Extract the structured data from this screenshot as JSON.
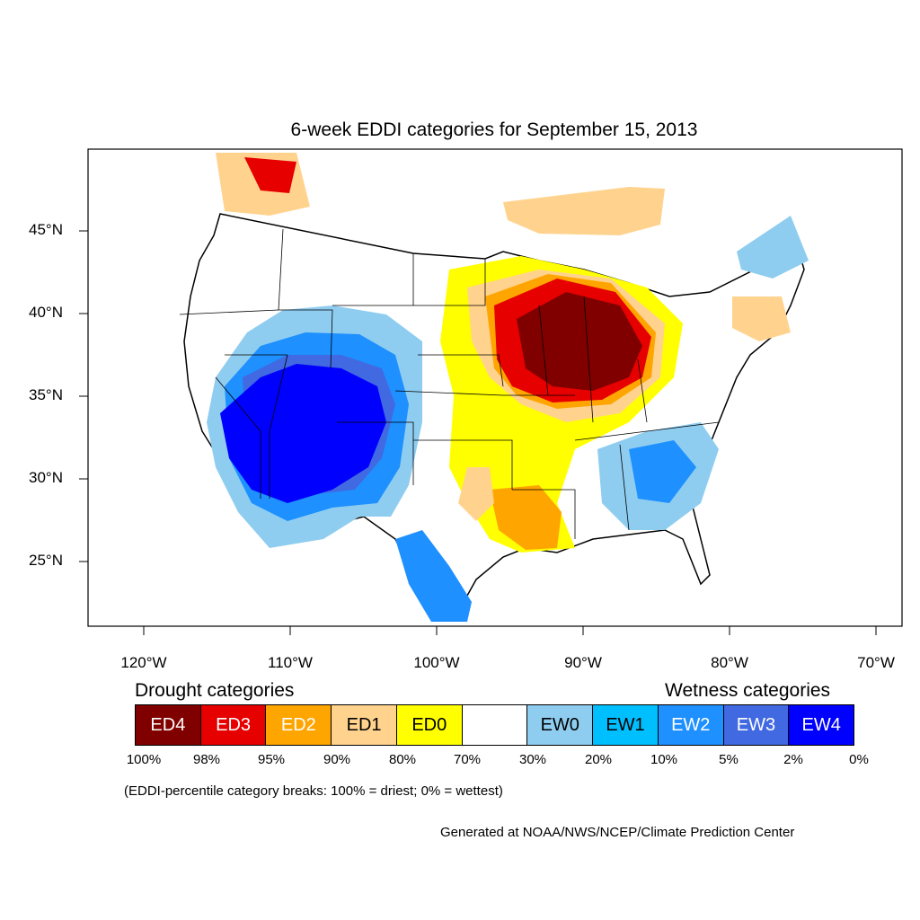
{
  "title": "6-week EDDI categories for September 15, 2013",
  "lat_labels": [
    "45°N",
    "40°N",
    "35°N",
    "30°N",
    "25°N"
  ],
  "lon_labels": [
    "120°W",
    "110°W",
    "100°W",
    "90°W",
    "80°W",
    "70°W"
  ],
  "legend": {
    "drought_heading": "Drought categories",
    "wetness_heading": "Wetness categories",
    "categories": [
      {
        "label": "ED4",
        "color": "#800000",
        "text_color": "#ffffff"
      },
      {
        "label": "ED3",
        "color": "#e60000",
        "text_color": "#ffffff"
      },
      {
        "label": "ED2",
        "color": "#ffa500",
        "text_color": "#ffffff"
      },
      {
        "label": "ED1",
        "color": "#ffd38e",
        "text_color": "#000000"
      },
      {
        "label": "ED0",
        "color": "#ffff00",
        "text_color": "#000000"
      },
      {
        "label": "",
        "color": "#ffffff",
        "text_color": "#000000"
      },
      {
        "label": "EW0",
        "color": "#8fcdf0",
        "text_color": "#000000"
      },
      {
        "label": "EW1",
        "color": "#00bfff",
        "text_color": "#000000"
      },
      {
        "label": "EW2",
        "color": "#1e90ff",
        "text_color": "#ffffff"
      },
      {
        "label": "EW3",
        "color": "#4169e1",
        "text_color": "#ffffff"
      },
      {
        "label": "EW4",
        "color": "#0000ff",
        "text_color": "#ffffff"
      }
    ],
    "breaks": [
      "100%",
      "98%",
      "95%",
      "90%",
      "80%",
      "70%",
      "30%",
      "20%",
      "10%",
      "5%",
      "2%",
      "0%"
    ]
  },
  "note": "(EDDI-percentile category breaks: 100% = driest; 0% = wettest)",
  "credit": "Generated at NOAA/NWS/NCEP/Climate Prediction Center"
}
